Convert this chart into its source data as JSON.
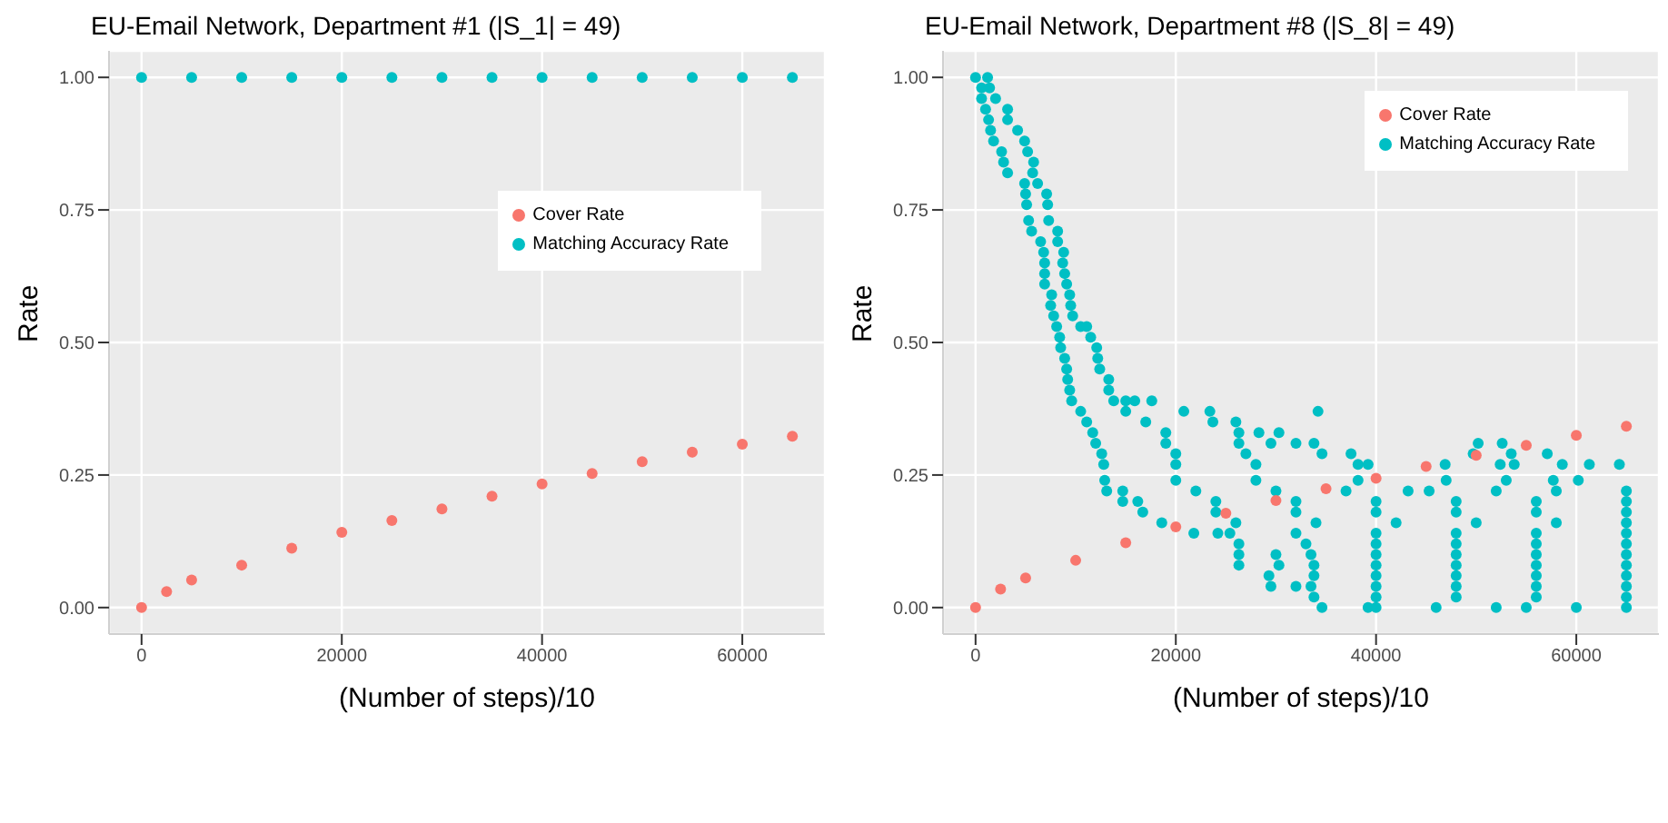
{
  "chart_data": [
    {
      "type": "scatter",
      "title": "EU-Email Network, Department #1 (|S_1| = 49)",
      "xlabel": "(Number of steps)/10",
      "ylabel": "Rate",
      "xlim": [
        -3250,
        68250
      ],
      "ylim": [
        -0.05,
        1.05
      ],
      "xticks": [
        0,
        20000,
        40000,
        60000
      ],
      "yticks": [
        {
          "value": 0,
          "label": "0.00"
        },
        {
          "value": 0.25,
          "label": "0.25"
        },
        {
          "value": 0.5,
          "label": "0.50"
        },
        {
          "value": 0.75,
          "label": "0.75"
        },
        {
          "value": 1,
          "label": "1.00"
        }
      ],
      "grid": true,
      "legend": "right",
      "marker": "circle",
      "series": [
        {
          "name": "Cover Rate",
          "color": "#f8766d",
          "x": [
            0,
            2500,
            5000,
            10000,
            15000,
            20000,
            25000,
            30000,
            35000,
            40000,
            45000,
            50000,
            55000,
            60000,
            65000
          ],
          "values": [
            0,
            0.03,
            0.052,
            0.08,
            0.112,
            0.142,
            0.164,
            0.186,
            0.21,
            0.233,
            0.253,
            0.275,
            0.293,
            0.308,
            0.323
          ]
        },
        {
          "name": "Matching Accuracy Rate",
          "color": "#00bfc4",
          "x": [
            0,
            5000,
            10000,
            15000,
            20000,
            25000,
            30000,
            35000,
            40000,
            45000,
            50000,
            55000,
            60000,
            65000
          ],
          "values": [
            1,
            1,
            1,
            1,
            1,
            1,
            1,
            1,
            1,
            1,
            1,
            1,
            1,
            1
          ]
        }
      ]
    },
    {
      "type": "scatter",
      "title": "EU-Email Network, Department #8 (|S_8| = 49)",
      "xlabel": "(Number of steps)/10",
      "ylabel": "Rate",
      "xlim": [
        -3250,
        68250
      ],
      "ylim": [
        -0.05,
        1.05
      ],
      "xticks": [
        0,
        20000,
        40000,
        60000
      ],
      "yticks": [
        {
          "value": 0,
          "label": "0.00"
        },
        {
          "value": 0.25,
          "label": "0.25"
        },
        {
          "value": 0.5,
          "label": "0.50"
        },
        {
          "value": 0.75,
          "label": "0.75"
        },
        {
          "value": 1,
          "label": "1.00"
        }
      ],
      "grid": true,
      "legend": "top right",
      "marker": "circle",
      "series": [
        {
          "name": "Cover Rate",
          "color": "#f8766d",
          "x": [
            0,
            2500,
            5000,
            10000,
            15000,
            20000,
            25000,
            30000,
            35000,
            40000,
            45000,
            50000,
            55000,
            60000,
            65000
          ],
          "values": [
            0,
            0.035,
            0.056,
            0.089,
            0.122,
            0.152,
            0.178,
            0.202,
            0.224,
            0.244,
            0.266,
            0.287,
            0.306,
            0.325,
            0.342
          ]
        },
        {
          "name": "Matching Accuracy Rate",
          "color": "#00bfc4",
          "x": [
            0,
            1200,
            600,
            1400,
            600,
            2000,
            1000,
            3200,
            1300,
            3200,
            1500,
            4200,
            1800,
            4900,
            2600,
            5200,
            2800,
            5800,
            3200,
            5700,
            4900,
            6200,
            5000,
            7100,
            5100,
            7200,
            5300,
            7300,
            5600,
            8200,
            6500,
            8200,
            6800,
            8800,
            6900,
            8700,
            6900,
            8900,
            6900,
            9100,
            7600,
            9400,
            7500,
            9500,
            7800,
            9700,
            8100,
            10500,
            11100,
            8400,
            11500,
            8500,
            12100,
            8900,
            12200,
            9100,
            12400,
            9200,
            13300,
            9400,
            13300,
            9600,
            13800,
            15000,
            15900,
            17600,
            10500,
            15000,
            20800,
            23400,
            34200,
            11100,
            17000,
            23700,
            26000,
            11700,
            19000,
            26300,
            28300,
            30300,
            12000,
            19000,
            26300,
            29500,
            32000,
            33800,
            50200,
            52600,
            12600,
            20000,
            27000,
            34600,
            37500,
            49700,
            53500,
            57100,
            12800,
            20000,
            28000,
            38200,
            39200,
            46900,
            52400,
            53800,
            58600,
            61300,
            64300,
            12900,
            20000,
            28000,
            38200,
            47000,
            53000,
            57700,
            60200,
            13100,
            14700,
            22000,
            30000,
            37000,
            43200,
            45300,
            52000,
            58000,
            65000,
            14700,
            16200,
            24000,
            32000,
            40000,
            48000,
            56000,
            65000,
            16700,
            24000,
            32000,
            40000,
            48000,
            56000,
            65000,
            18600,
            26000,
            34000,
            42000,
            50000,
            58000,
            65000,
            21800,
            24200,
            25400,
            32000,
            40000,
            48000,
            56000,
            65000,
            26300,
            33000,
            40000,
            48000,
            56000,
            65000,
            26300,
            30000,
            33500,
            40000,
            48000,
            56000,
            65000,
            26300,
            30300,
            33800,
            40000,
            48000,
            56000,
            65000,
            29300,
            33800,
            40000,
            48000,
            56000,
            65000,
            29500,
            32000,
            33500,
            40000,
            48000,
            56000,
            65000,
            33800,
            40000,
            48000,
            56000,
            65000,
            34600,
            39200,
            40000,
            46000,
            52000,
            55000,
            60000,
            65000
          ],
          "values": [
            1,
            1,
            0.98,
            0.98,
            0.96,
            0.96,
            0.94,
            0.94,
            0.92,
            0.92,
            0.9,
            0.9,
            0.88,
            0.88,
            0.86,
            0.86,
            0.84,
            0.84,
            0.82,
            0.82,
            0.8,
            0.8,
            0.78,
            0.78,
            0.76,
            0.76,
            0.73,
            0.73,
            0.71,
            0.71,
            0.69,
            0.69,
            0.67,
            0.67,
            0.65,
            0.65,
            0.63,
            0.63,
            0.61,
            0.61,
            0.59,
            0.59,
            0.57,
            0.57,
            0.55,
            0.55,
            0.53,
            0.53,
            0.53,
            0.51,
            0.51,
            0.49,
            0.49,
            0.47,
            0.47,
            0.45,
            0.45,
            0.43,
            0.43,
            0.41,
            0.41,
            0.39,
            0.39,
            0.39,
            0.39,
            0.39,
            0.37,
            0.37,
            0.37,
            0.37,
            0.37,
            0.35,
            0.35,
            0.35,
            0.35,
            0.33,
            0.33,
            0.33,
            0.33,
            0.33,
            0.31,
            0.31,
            0.31,
            0.31,
            0.31,
            0.31,
            0.31,
            0.31,
            0.29,
            0.29,
            0.29,
            0.29,
            0.29,
            0.29,
            0.29,
            0.29,
            0.27,
            0.27,
            0.27,
            0.27,
            0.27,
            0.27,
            0.27,
            0.27,
            0.27,
            0.27,
            0.27,
            0.24,
            0.24,
            0.24,
            0.24,
            0.24,
            0.24,
            0.24,
            0.24,
            0.22,
            0.22,
            0.22,
            0.22,
            0.22,
            0.22,
            0.22,
            0.22,
            0.22,
            0.22,
            0.2,
            0.2,
            0.2,
            0.2,
            0.2,
            0.2,
            0.2,
            0.2,
            0.18,
            0.18,
            0.18,
            0.18,
            0.18,
            0.18,
            0.18,
            0.16,
            0.16,
            0.16,
            0.16,
            0.16,
            0.16,
            0.16,
            0.14,
            0.14,
            0.14,
            0.14,
            0.14,
            0.14,
            0.14,
            0.14,
            0.12,
            0.12,
            0.12,
            0.12,
            0.12,
            0.12,
            0.1,
            0.1,
            0.1,
            0.1,
            0.1,
            0.1,
            0.1,
            0.08,
            0.08,
            0.08,
            0.08,
            0.08,
            0.08,
            0.08,
            0.06,
            0.06,
            0.06,
            0.06,
            0.06,
            0.06,
            0.04,
            0.04,
            0.04,
            0.04,
            0.04,
            0.04,
            0.04,
            0.02,
            0.02,
            0.02,
            0.02,
            0.02,
            0,
            0,
            0,
            0,
            0,
            0,
            0,
            0
          ]
        }
      ]
    }
  ]
}
